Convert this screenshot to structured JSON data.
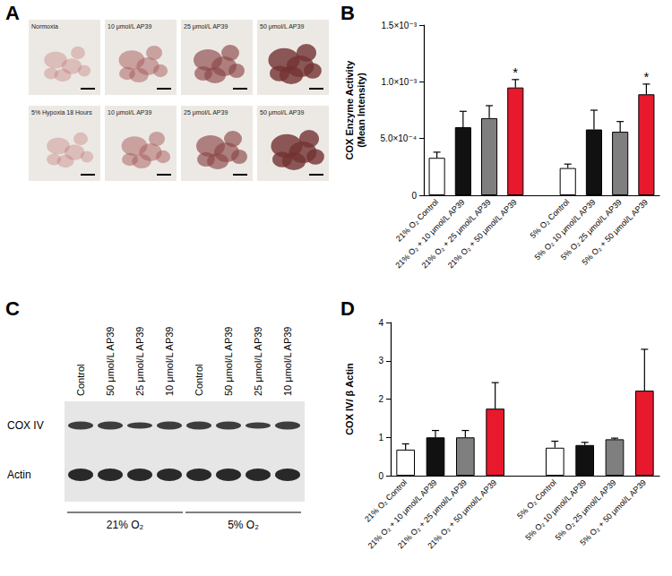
{
  "panel_labels": [
    "A",
    "B",
    "C",
    "D"
  ],
  "panel_a": {
    "images": [
      {
        "label": "Normoxia"
      },
      {
        "label": "10 μmol/L AP39"
      },
      {
        "label": "25 μmol/L AP39"
      },
      {
        "label": "50 μmol/L AP39"
      },
      {
        "label": "5% Hypoxia 18 Hours"
      },
      {
        "label": "10 μmol/L AP39"
      },
      {
        "label": "25 μmol/L AP39"
      },
      {
        "label": "50 μmol/L AP39"
      }
    ]
  },
  "panel_c": {
    "lanes": [
      "Control",
      "50 μmol/L AP39",
      "25 μmol/L AP39",
      "10 μmol/L AP39",
      "Control",
      "50 μmol/L AP39",
      "25 μmol/L AP39",
      "10 μmol/L AP39"
    ],
    "rows": [
      "COX IV",
      "Actin"
    ],
    "groups": [
      "21% O₂",
      "5% O₂"
    ]
  },
  "chart_data": [
    {
      "type": "bar",
      "ylabel": "COX Enzyme Activity\n(Mean Intensity)",
      "categories": [
        "21% O₂ Control",
        "21% O₂ + 10 μmol/L AP39",
        "21% O₂ + 25 μmol/L AP39",
        "21% O₂ + 50 μmol/L AP39",
        null,
        "5% O₂ Control",
        "5% O₂ 10 μmol/L AP39",
        "5% O₂ 25 μmol/L AP39",
        "5% O₂ + 50 μmol/L AP39"
      ],
      "values": [
        0.00033,
        0.0006,
        0.00068,
        0.00095,
        null,
        0.00024,
        0.00058,
        0.00056,
        0.00089
      ],
      "errors": [
        5e-05,
        0.00014,
        0.00011,
        7e-05,
        null,
        3.5e-05,
        0.00017,
        9e-05,
        9e-05
      ],
      "colors": [
        "#ffffff",
        "#111111",
        "#7f7f7f",
        "#e8192c",
        null,
        "#ffffff",
        "#111111",
        "#7f7f7f",
        "#e8192c"
      ],
      "ylim": [
        0,
        0.0015
      ],
      "yticks": [
        0,
        {
          "value": 0.0005,
          "label": "5.0×10⁻⁴"
        },
        {
          "value": 0.001,
          "label": "1.0×10⁻³"
        },
        {
          "value": 0.0015,
          "label": "1.5×10⁻³"
        }
      ],
      "grid": false,
      "annotations": [
        {
          "category": "21% O₂ + 50 μmol/L AP39",
          "text": "*"
        },
        {
          "category": "5% O₂ + 50 μmol/L AP39",
          "text": "*"
        }
      ]
    },
    {
      "type": "bar",
      "ylabel": "COX IV/ β Actin",
      "categories": [
        "21% O₂ Control",
        "21% O₂ + 10 μmol/L AP39",
        "21% O₂ + 25 μmol/L AP39",
        "21% O₂ + 50 μmol/L AP39",
        null,
        "5% O₂ Control",
        "5% O₂ 10 μmol/L AP39",
        "5% O₂ 25 μmol/L AP39",
        "5% O₂ + 50 μmol/L AP39"
      ],
      "values": [
        0.68,
        1.0,
        1.0,
        1.75,
        null,
        0.73,
        0.8,
        0.95,
        2.22
      ],
      "errors": [
        0.15,
        0.18,
        0.18,
        0.68,
        null,
        0.17,
        0.07,
        0.03,
        1.08
      ],
      "colors": [
        "#ffffff",
        "#111111",
        "#7f7f7f",
        "#e8192c",
        null,
        "#ffffff",
        "#111111",
        "#7f7f7f",
        "#e8192c"
      ],
      "ylim": [
        0,
        4
      ],
      "yticks": [
        0,
        1,
        2,
        3,
        4
      ],
      "grid": false
    }
  ]
}
